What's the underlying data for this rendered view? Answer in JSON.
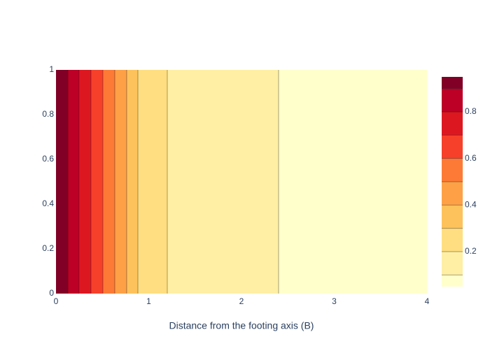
{
  "chart_data": {
    "type": "contour",
    "x_label": "Distance from the footing axis (B)",
    "x": [
      0,
      0.128,
      0.25,
      0.377,
      0.506,
      0.634,
      0.762,
      0.883,
      1.2,
      2.4,
      4
    ],
    "z": [
      0.95,
      0.9,
      0.8,
      0.7,
      0.6,
      0.5,
      0.4,
      0.3,
      0.2,
      0.1,
      0.05
    ],
    "contour_levels": [
      0.1,
      0.2,
      0.3,
      0.4,
      0.5,
      0.6,
      0.7,
      0.8,
      0.9
    ],
    "colors": [
      "#ffffcc",
      "#ffefa4",
      "#fede80",
      "#fec25c",
      "#fea046",
      "#fd7a36",
      "#f6402a",
      "#dd1720",
      "#bc0026",
      "#800026"
    ],
    "xlim": [
      0,
      4
    ],
    "xticks": [
      0,
      1,
      2,
      3,
      4
    ],
    "ylim": [
      0,
      1
    ],
    "yticks": [
      0,
      0.2,
      0.4,
      0.6,
      0.8,
      1
    ],
    "colorbar_ticks": [
      0.2,
      0.4,
      0.6,
      0.8
    ]
  }
}
